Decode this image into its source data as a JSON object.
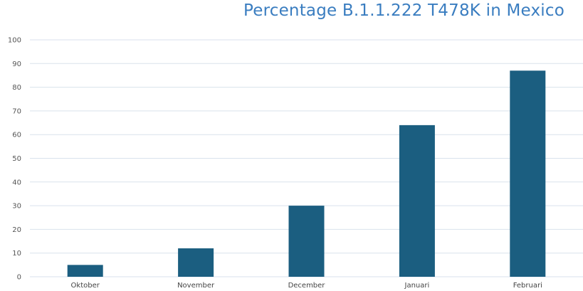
{
  "chart_data": {
    "type": "bar",
    "title": "Percentage B.1.1.222 T478K in Mexico",
    "xlabel": "",
    "ylabel": "",
    "categories": [
      "Oktober",
      "November",
      "December",
      "Januari",
      "Februari"
    ],
    "values": [
      5,
      12,
      30,
      64,
      87
    ],
    "ylim": [
      0,
      100
    ],
    "yticks": [
      0,
      10,
      20,
      30,
      40,
      50,
      60,
      70,
      80,
      90,
      100
    ],
    "grid": true,
    "legend": "none",
    "colors": {
      "bar": "#1b5e80",
      "title": "#3a7dc0",
      "grid": "#d9e2ec"
    }
  }
}
